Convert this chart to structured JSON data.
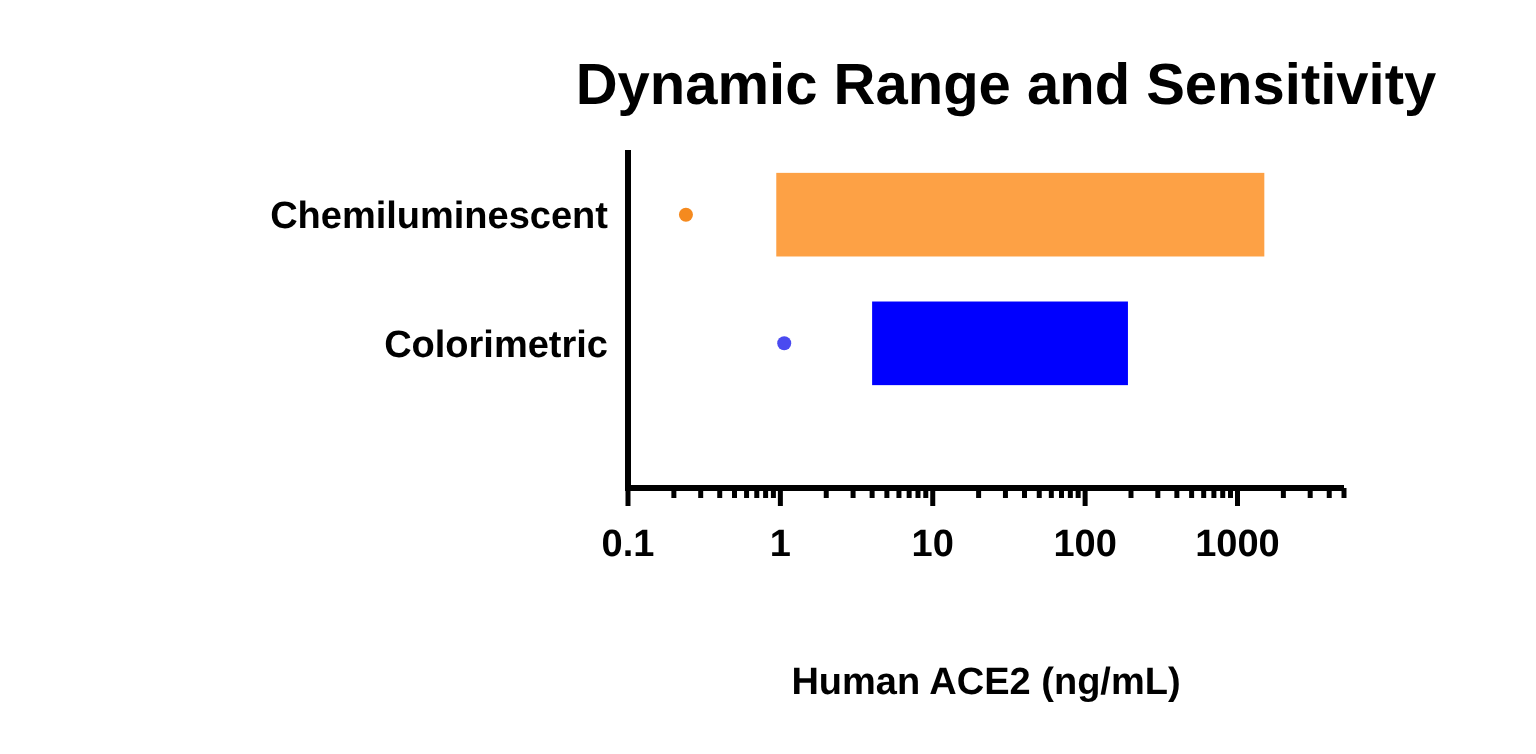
{
  "chart_data": {
    "type": "bar",
    "orientation": "horizontal",
    "title": "Dynamic Range and Sensitivity",
    "xlabel": "Human ACE2 (ng/mL)",
    "categories": [
      "Chemiluminescent",
      "Colorimetric"
    ],
    "series": [
      {
        "type": "bar",
        "base": [
          0.94,
          4
        ],
        "values": [
          1499,
          187
        ],
        "colors": [
          "#fda145",
          "#0000ff"
        ]
      },
      {
        "type": "scatter",
        "x": [
          "Chemiluminescent",
          "Colorimetric"
        ],
        "values": [
          0.24,
          1.06
        ],
        "colors": [
          "#f58a1f",
          "#4a4af0"
        ]
      }
    ],
    "log": "x",
    "xlim": [
      0.1,
      5000
    ],
    "xticks": [
      0.1,
      {
        "value": 0.2,
        "label": null
      },
      {
        "value": 0.3,
        "label": null
      },
      {
        "value": 0.4,
        "label": null
      },
      {
        "value": 0.5,
        "label": null
      },
      {
        "value": 0.6,
        "label": null
      },
      {
        "value": 0.7,
        "label": null
      },
      {
        "value": 0.8,
        "label": null
      },
      {
        "value": 0.9,
        "label": null
      },
      1,
      {
        "value": 2,
        "label": null
      },
      {
        "value": 3,
        "label": null
      },
      {
        "value": 4,
        "label": null
      },
      {
        "value": 5,
        "label": null
      },
      {
        "value": 6,
        "label": null
      },
      {
        "value": 7,
        "label": null
      },
      {
        "value": 8,
        "label": null
      },
      {
        "value": 9,
        "label": null
      },
      10,
      {
        "value": 20,
        "label": null
      },
      {
        "value": 30,
        "label": null
      },
      {
        "value": 40,
        "label": null
      },
      {
        "value": 50,
        "label": null
      },
      {
        "value": 60,
        "label": null
      },
      {
        "value": 70,
        "label": null
      },
      {
        "value": 80,
        "label": null
      },
      {
        "value": 90,
        "label": null
      },
      100,
      {
        "value": 200,
        "label": null
      },
      {
        "value": 300,
        "label": null
      },
      {
        "value": 400,
        "label": null
      },
      {
        "value": 500,
        "label": null
      },
      {
        "value": 600,
        "label": null
      },
      {
        "value": 700,
        "label": null
      },
      {
        "value": 800,
        "label": null
      },
      {
        "value": 900,
        "label": null
      },
      1000,
      {
        "value": 2000,
        "label": null
      },
      {
        "value": 3000,
        "label": null
      },
      {
        "value": 4000,
        "label": null
      },
      {
        "value": 5000,
        "label": null
      }
    ],
    "grid": false
  }
}
